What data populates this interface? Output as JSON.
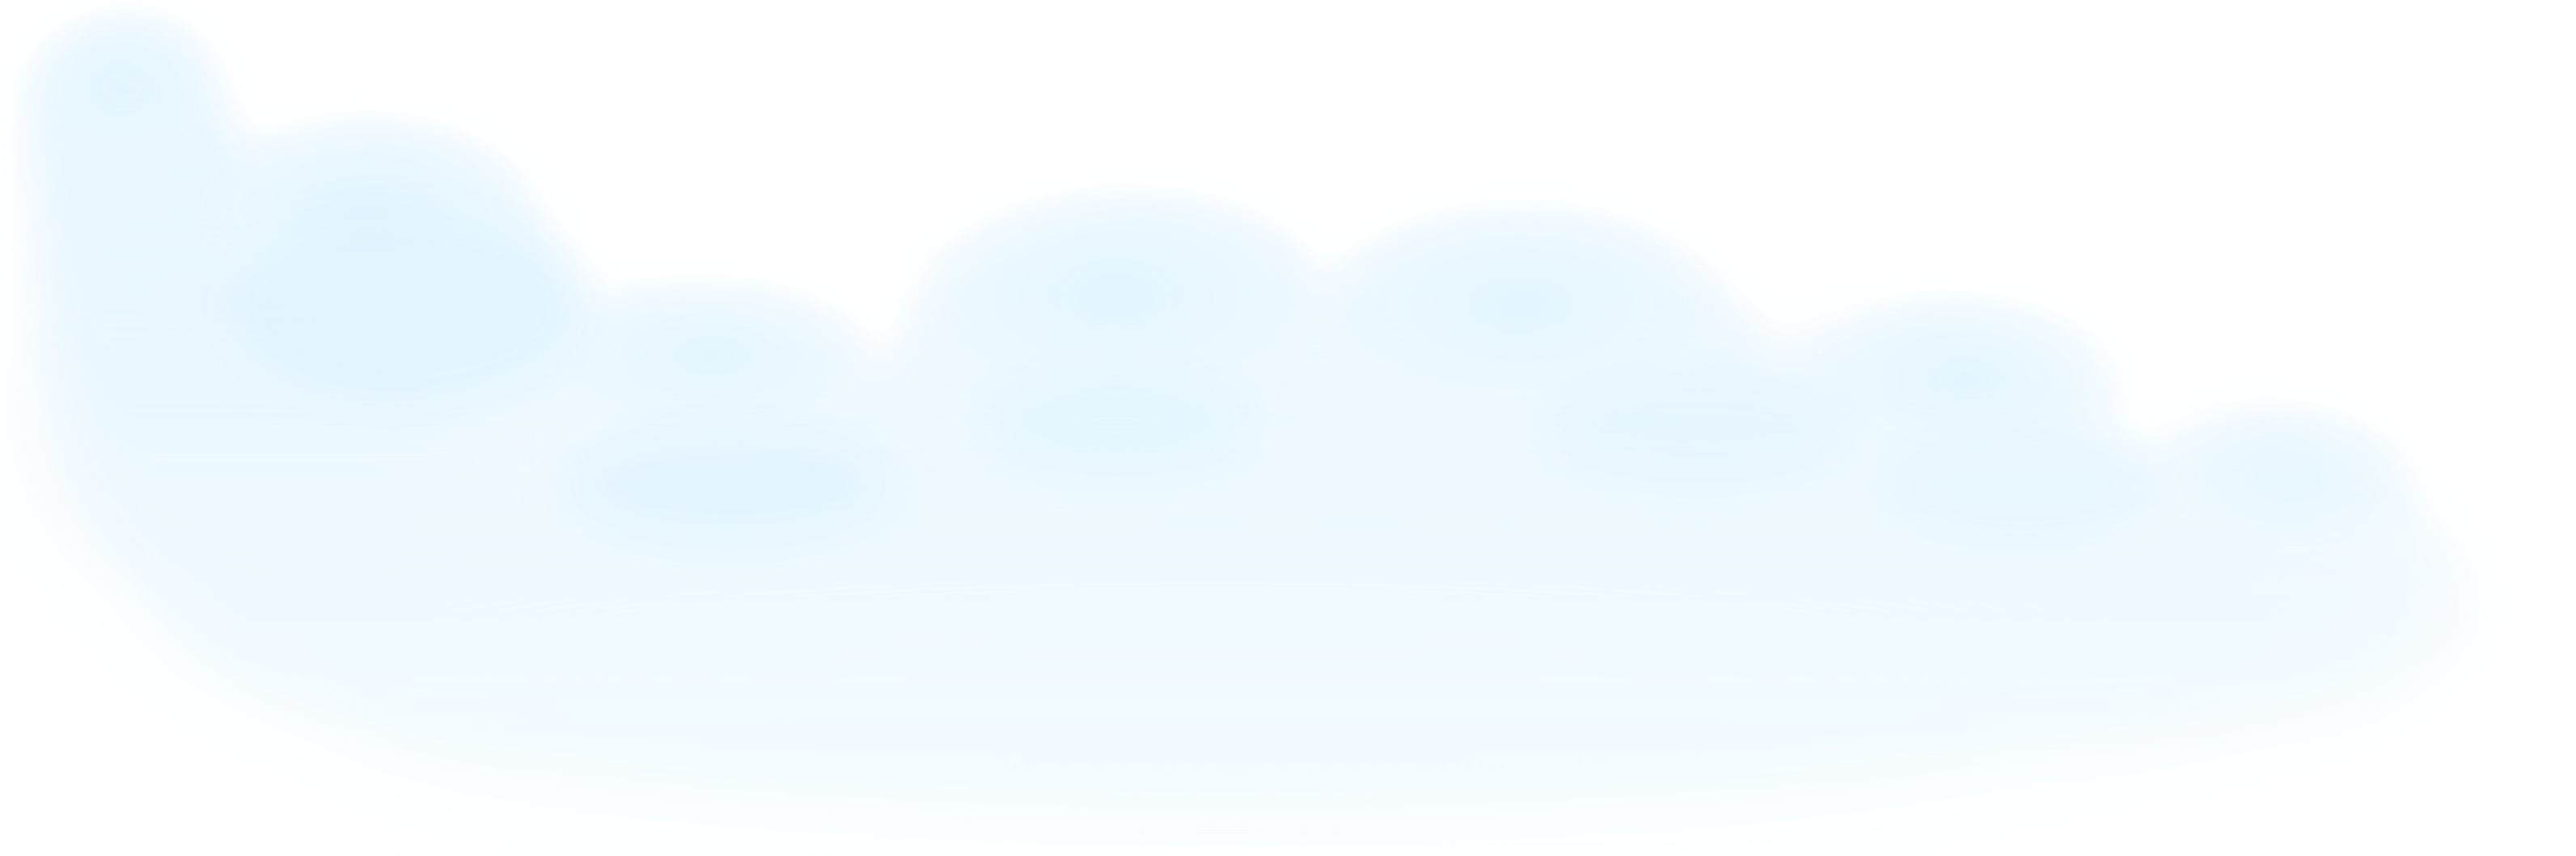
{
  "scene": {
    "background_color": "#ffffff",
    "cloud_color": "#d6efff",
    "cloud_shade_color": "#c8e9ff",
    "icon": "cloud-graphic"
  }
}
